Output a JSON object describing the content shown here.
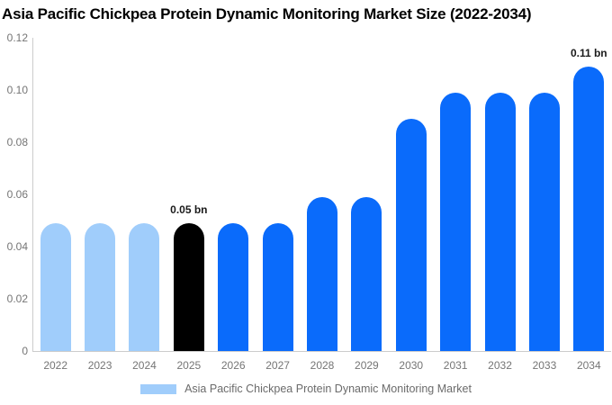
{
  "page": {
    "background": "#FFFFFF"
  },
  "chart_data": {
    "type": "bar",
    "title": "Asia Pacific Chickpea Protein Dynamic Monitoring Market Size (2022-2034)",
    "unit": "bn",
    "categories": [
      "2022",
      "2023",
      "2024",
      "2025",
      "2026",
      "2027",
      "2028",
      "2029",
      "2030",
      "2031",
      "2032",
      "2033",
      "2034"
    ],
    "values": [
      0.049,
      0.049,
      0.049,
      0.049,
      0.049,
      0.049,
      0.059,
      0.059,
      0.089,
      0.099,
      0.099,
      0.099,
      0.109
    ],
    "bar_colors": [
      "#A0CDFB",
      "#A0CDFB",
      "#A0CDFB",
      "#000000",
      "#0A6BFB",
      "#0A6BFB",
      "#0A6BFB",
      "#0A6BFB",
      "#0A6BFB",
      "#0A6BFB",
      "#0A6BFB",
      "#0A6BFB",
      "#0A6BFB"
    ],
    "annotations": [
      {
        "category": "2025",
        "text": "0.05 bn"
      },
      {
        "category": "2034",
        "text": "0.11 bn"
      }
    ],
    "ylim": [
      0,
      0.12
    ],
    "yticks": [
      {
        "value": 0,
        "label": "0"
      },
      {
        "value": 0.02,
        "label": "0.02"
      },
      {
        "value": 0.04,
        "label": "0.04"
      },
      {
        "value": 0.06,
        "label": "0.06"
      },
      {
        "value": 0.08,
        "label": "0.08"
      },
      {
        "value": 0.1,
        "label": "0.10"
      },
      {
        "value": 0.12,
        "label": "0.12"
      }
    ],
    "grid": false,
    "legend": {
      "position": "bottom",
      "entries": [
        {
          "label": "Asia Pacific Chickpea Protein Dynamic Monitoring Market",
          "swatch_color": "#A0CDFB"
        }
      ]
    },
    "colors": {
      "axis_line": "#CCCCCC",
      "tick_text": "#757575",
      "legend_text": "#6B6B6B",
      "annotation_text": "#1A1A1A",
      "title_text": "#000000"
    }
  }
}
